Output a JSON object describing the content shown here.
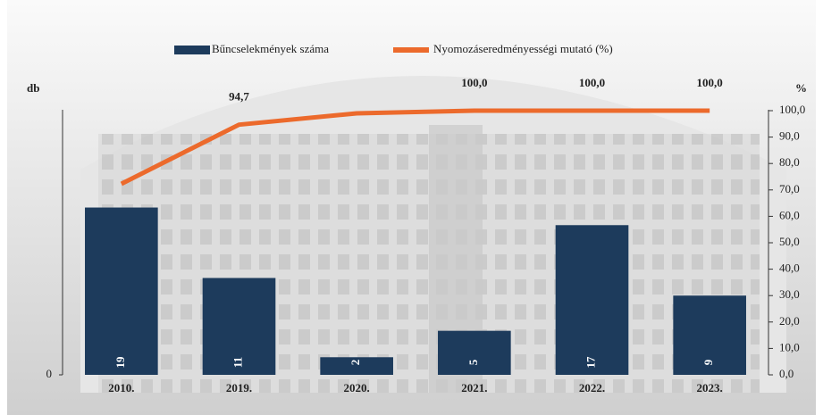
{
  "chart_data": {
    "type": "combo",
    "categories": [
      "2010.",
      "2019.",
      "2020.",
      "2021.",
      "2022.",
      "2023."
    ],
    "series": [
      {
        "name": "Bűncselekmények száma",
        "type": "bar",
        "color": "#1d3b5c",
        "values": [
          19,
          11,
          2,
          5,
          17,
          9
        ]
      },
      {
        "name": "Nyomozáseredményességi mutató (%)",
        "type": "line",
        "axis": "y2",
        "color": "#ec6a2c",
        "values": [
          72.3,
          94.7,
          99.0,
          100.0,
          100.0,
          100.0
        ],
        "value_labels": [
          null,
          "94,7",
          null,
          "100,0",
          "100,0",
          "100,0"
        ]
      }
    ],
    "ylabel": "db",
    "y2label": "%",
    "ylim": [
      0,
      30
    ],
    "yticks": [
      0
    ],
    "y2lim": [
      0,
      100
    ],
    "y2ticks": [
      {
        "value": 0,
        "label": "0,0"
      },
      {
        "value": 10,
        "label": "10,0"
      },
      {
        "value": 20,
        "label": "20,0"
      },
      {
        "value": 30,
        "label": "30,0"
      },
      {
        "value": 40,
        "label": "40,0"
      },
      {
        "value": 50,
        "label": "50,0"
      },
      {
        "value": 60,
        "label": "60,0"
      },
      {
        "value": 70,
        "label": "70,0"
      },
      {
        "value": 80,
        "label": "80,0"
      },
      {
        "value": 90,
        "label": "90,0"
      },
      {
        "value": 100,
        "label": "100,0"
      }
    ]
  }
}
